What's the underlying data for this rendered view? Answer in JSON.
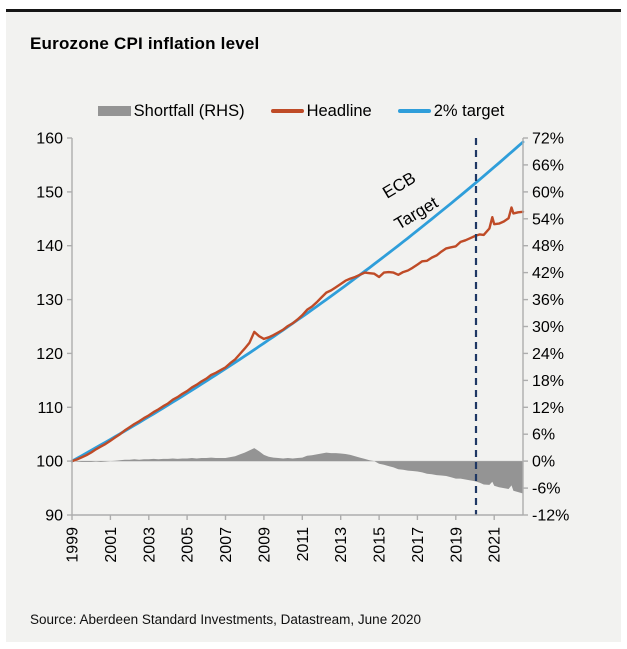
{
  "header": {
    "title": "Eurozone CPI inflation level"
  },
  "source_text": "Source: Aberdeen Standard Investments, Datastream, June 2020",
  "colors": {
    "background_card": "#f2f2f0",
    "headline": "#bf4b27",
    "target": "#2f9eda",
    "shortfall": "#949494",
    "navy": "#1f3864",
    "axis": "#adadad",
    "zero_line": "#d8d8d6"
  },
  "legend": [
    {
      "label": "Shortfall (RHS)",
      "swatch": "area",
      "color": "#949494"
    },
    {
      "label": "Headline",
      "swatch": "line",
      "color": "#bf4b27"
    },
    {
      "label": "2% target",
      "swatch": "line",
      "color": "#2f9eda"
    }
  ],
  "annotation": {
    "lines": [
      "ECB",
      "Target"
    ],
    "color": "#1f3864",
    "rotation_deg": -31
  },
  "chart_data": {
    "type": "line+area",
    "title": "Eurozone CPI inflation level",
    "x_axis": {
      "min": 1999,
      "max": 2022.5,
      "label_years": [
        1999,
        2001,
        2003,
        2005,
        2007,
        2009,
        2011,
        2013,
        2015,
        2017,
        2019,
        2021
      ]
    },
    "left_axis": {
      "min": 90,
      "max": 160,
      "ticks": [
        160,
        150,
        140,
        130,
        120,
        110,
        100,
        90
      ]
    },
    "right_axis": {
      "min": -12,
      "max": 72,
      "ticks_pct": [
        72,
        66,
        60,
        54,
        48,
        42,
        36,
        30,
        24,
        18,
        12,
        6,
        0,
        -6,
        -12
      ],
      "grid": false
    },
    "event_line": {
      "x_year": 2020.05,
      "style": "dashed",
      "color": "#1f3864"
    },
    "x": [
      1999,
      1999.25,
      1999.5,
      1999.75,
      2000,
      2000.25,
      2000.5,
      2000.75,
      2001,
      2001.25,
      2001.5,
      2001.75,
      2002,
      2002.25,
      2002.5,
      2002.75,
      2003,
      2003.25,
      2003.5,
      2003.75,
      2004,
      2004.25,
      2004.5,
      2004.75,
      2005,
      2005.25,
      2005.5,
      2005.75,
      2006,
      2006.25,
      2006.5,
      2006.75,
      2007,
      2007.25,
      2007.5,
      2007.75,
      2008,
      2008.25,
      2008.5,
      2008.75,
      2009,
      2009.25,
      2009.5,
      2009.75,
      2010,
      2010.25,
      2010.5,
      2010.75,
      2011,
      2011.25,
      2011.5,
      2011.75,
      2012,
      2012.25,
      2012.5,
      2012.75,
      2013,
      2013.25,
      2013.5,
      2013.75,
      2014,
      2014.25,
      2014.5,
      2014.75,
      2015,
      2015.25,
      2015.5,
      2015.75,
      2016,
      2016.25,
      2016.5,
      2016.75,
      2017,
      2017.25,
      2017.5,
      2017.75,
      2018,
      2018.25,
      2018.5,
      2018.75,
      2019,
      2019.25,
      2019.5,
      2019.75,
      2020,
      2020.25,
      2020.45,
      2020.75,
      2020.9,
      2021,
      2021.25,
      2021.5,
      2021.75,
      2021.9,
      2022,
      2022.25,
      2022.5
    ],
    "series": [
      {
        "name": "Headline",
        "axis": "left",
        "kind": "line",
        "color": "#bf4b27",
        "values": [
          100.0,
          100.3,
          100.7,
          101.1,
          101.6,
          102.2,
          102.7,
          103.2,
          103.8,
          104.4,
          105.0,
          105.7,
          106.3,
          106.9,
          107.4,
          108.0,
          108.5,
          109.1,
          109.6,
          110.2,
          110.7,
          111.4,
          111.9,
          112.5,
          113.0,
          113.7,
          114.2,
          114.8,
          115.3,
          116.0,
          116.4,
          116.9,
          117.4,
          118.2,
          118.9,
          119.9,
          120.9,
          122.0,
          124.0,
          123.2,
          122.7,
          123.0,
          123.4,
          123.9,
          124.4,
          125.1,
          125.6,
          126.3,
          127.1,
          128.1,
          128.7,
          129.5,
          130.4,
          131.3,
          131.7,
          132.3,
          132.9,
          133.5,
          133.9,
          134.2,
          134.6,
          135.0,
          134.9,
          134.8,
          134.2,
          135.0,
          135.1,
          135.0,
          134.6,
          135.1,
          135.4,
          135.9,
          136.5,
          137.1,
          137.2,
          137.8,
          138.2,
          138.9,
          139.5,
          139.7,
          139.9,
          140.7,
          141.0,
          141.4,
          141.8,
          142.1,
          142.0,
          143.2,
          145.3,
          144.0,
          144.1,
          144.5,
          145.1,
          147.1,
          146.0,
          146.2,
          146.3
        ]
      },
      {
        "name": "2% target",
        "axis": "left",
        "kind": "line",
        "color": "#2f9eda",
        "rule": {
          "base_year": 1999,
          "base_value": 100,
          "annual_growth_pct": 2
        }
      },
      {
        "name": "Shortfall (RHS)",
        "axis": "right",
        "kind": "area",
        "color": "#949494",
        "values": [
          0.0,
          -0.1,
          -0.2,
          -0.2,
          -0.2,
          -0.1,
          -0.2,
          -0.1,
          0.0,
          0.1,
          0.2,
          0.3,
          0.3,
          0.4,
          0.3,
          0.4,
          0.4,
          0.5,
          0.4,
          0.5,
          0.5,
          0.6,
          0.5,
          0.6,
          0.6,
          0.7,
          0.6,
          0.7,
          0.7,
          0.8,
          0.7,
          0.7,
          0.7,
          0.9,
          1.1,
          1.5,
          1.9,
          2.4,
          2.9,
          2.2,
          1.4,
          1.0,
          0.8,
          0.7,
          0.6,
          0.7,
          0.6,
          0.7,
          0.8,
          1.2,
          1.3,
          1.5,
          1.7,
          1.9,
          1.8,
          1.8,
          1.7,
          1.6,
          1.4,
          1.1,
          0.8,
          0.5,
          0.2,
          0.0,
          -0.6,
          -0.8,
          -1.1,
          -1.4,
          -1.8,
          -1.9,
          -2.1,
          -2.2,
          -2.3,
          -2.5,
          -2.8,
          -2.9,
          -3.1,
          -3.2,
          -3.3,
          -3.6,
          -3.9,
          -3.9,
          -4.1,
          -4.3,
          -4.5,
          -4.8,
          -5.2,
          -5.3,
          -4.6,
          -5.5,
          -5.8,
          -6.0,
          -6.2,
          -5.4,
          -6.6,
          -6.9,
          -7.2
        ]
      }
    ]
  }
}
